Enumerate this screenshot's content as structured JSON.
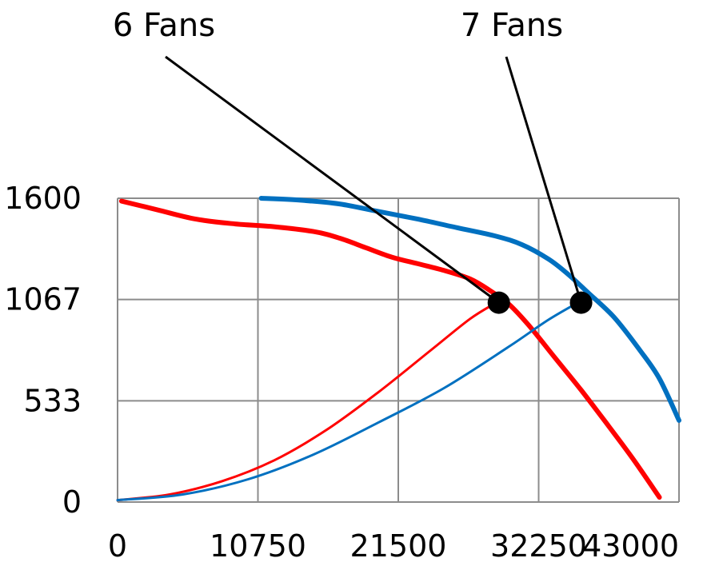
{
  "chart_data": {
    "type": "line",
    "title": "",
    "xlabel": "",
    "ylabel": "",
    "xlim": [
      0,
      43000
    ],
    "ylim": [
      0,
      1600
    ],
    "x_ticks": [
      "0",
      "10750",
      "21500",
      "32250",
      "43000"
    ],
    "y_ticks": [
      "0",
      "533",
      "1067",
      "1600"
    ],
    "grid": true,
    "legend": "none",
    "series": [
      {
        "color": "#0070c0",
        "style": "thick",
        "points": [
          [
            11000,
            1600
          ],
          [
            14000,
            1590
          ],
          [
            17000,
            1570
          ],
          [
            20000,
            1530
          ],
          [
            23000,
            1490
          ],
          [
            26000,
            1445
          ],
          [
            29000,
            1400
          ],
          [
            31000,
            1355
          ],
          [
            33000,
            1280
          ],
          [
            34500,
            1200
          ],
          [
            36000,
            1105
          ],
          [
            38000,
            975
          ],
          [
            40000,
            800
          ],
          [
            41500,
            650
          ],
          [
            43000,
            430
          ]
        ]
      },
      {
        "color": "#ff0000",
        "style": "thick",
        "points": [
          [
            300,
            1585
          ],
          [
            3000,
            1540
          ],
          [
            6000,
            1490
          ],
          [
            9000,
            1465
          ],
          [
            12000,
            1450
          ],
          [
            15000,
            1425
          ],
          [
            17000,
            1390
          ],
          [
            19000,
            1340
          ],
          [
            21000,
            1290
          ],
          [
            23000,
            1255
          ],
          [
            25000,
            1220
          ],
          [
            27000,
            1175
          ],
          [
            28500,
            1115
          ],
          [
            30000,
            1040
          ],
          [
            31500,
            930
          ],
          [
            33500,
            760
          ],
          [
            35500,
            590
          ],
          [
            37500,
            410
          ],
          [
            39500,
            225
          ],
          [
            41500,
            25
          ]
        ]
      },
      {
        "color": "#ff0000",
        "style": "thin",
        "points": [
          [
            0,
            10
          ],
          [
            4000,
            40
          ],
          [
            8000,
            110
          ],
          [
            12000,
            220
          ],
          [
            16000,
            380
          ],
          [
            20000,
            580
          ],
          [
            24000,
            800
          ],
          [
            27000,
            965
          ],
          [
            29000,
            1050
          ]
        ]
      },
      {
        "color": "#0070c0",
        "style": "thin",
        "points": [
          [
            0,
            10
          ],
          [
            5000,
            40
          ],
          [
            10000,
            120
          ],
          [
            15000,
            250
          ],
          [
            20000,
            420
          ],
          [
            25000,
            600
          ],
          [
            30000,
            820
          ],
          [
            33000,
            960
          ],
          [
            35500,
            1060
          ]
        ]
      }
    ],
    "markers": [
      {
        "label": "6 Fans",
        "x": 29200,
        "y": 1050
      },
      {
        "label": "7 Fans",
        "x": 35500,
        "y": 1050
      }
    ],
    "colors": {
      "blue_series": "#0070c0",
      "red_series": "#ff0000",
      "gridline": "#8c8c8c",
      "marker": "#000000"
    }
  }
}
